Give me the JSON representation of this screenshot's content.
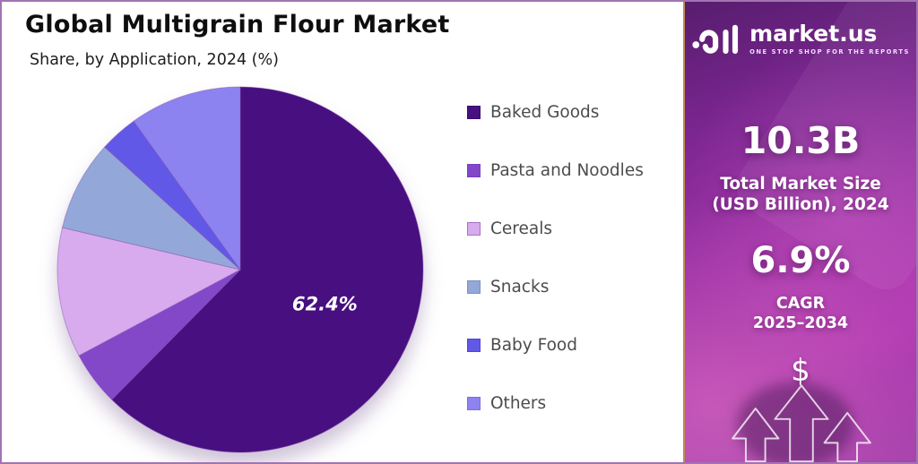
{
  "header": {
    "title": "Global Multigrain Flour Market",
    "subtitle": "Share, by Application, 2024 (%)"
  },
  "chart_data": {
    "type": "pie",
    "title": "Global Multigrain Flour Market",
    "subtitle": "Share, by Application, 2024 (%)",
    "unit": "%",
    "categories": [
      "Baked Goods",
      "Pasta and Noodles",
      "Cereals",
      "Snacks",
      "Baby Food",
      "Others"
    ],
    "values": [
      62.4,
      4.8,
      11.5,
      8.0,
      3.4,
      9.9
    ],
    "value_labels": [
      "62.4%",
      "",
      "",
      "",
      "",
      ""
    ],
    "colors": [
      "#470f80",
      "#8348c8",
      "#d7abee",
      "#93a8d8",
      "#6158e7",
      "#8c83f0"
    ],
    "swatch_borders": [
      "#3a0a6e",
      "#7a3fc0",
      "#aa70cc",
      "#7b90c4",
      "#4f46d4",
      "#7a6ee0"
    ],
    "slice_stroke": "#8a4fb0",
    "start_angle_deg": 0,
    "direction": "clockwise",
    "legend_position": "right"
  },
  "sidebar": {
    "brand": {
      "name": "market.us",
      "tagline": "ONE STOP SHOP FOR THE REPORTS",
      "logo_icon": "marketus-logo-icon"
    },
    "market_size": {
      "value": "10.3B",
      "label_line1": "Total Market Size",
      "label_line2": "(USD Billion), 2024"
    },
    "cagr": {
      "value": "6.9%",
      "label_line1": "CAGR",
      "label_line2": "2025–2034"
    },
    "dollar_symbol": "$",
    "icons": [
      "dollar-icon",
      "growth-arrows-icon"
    ]
  },
  "colors": {
    "frame_border": "#a273b2",
    "panel_border": "#c08b52",
    "panel_purple_dark": "#571d6e",
    "panel_purple_bright": "#b13bb1",
    "legend_text": "#4c4c4c",
    "title_text": "#0e0e0e",
    "pie_label_text": "#ffffff"
  }
}
